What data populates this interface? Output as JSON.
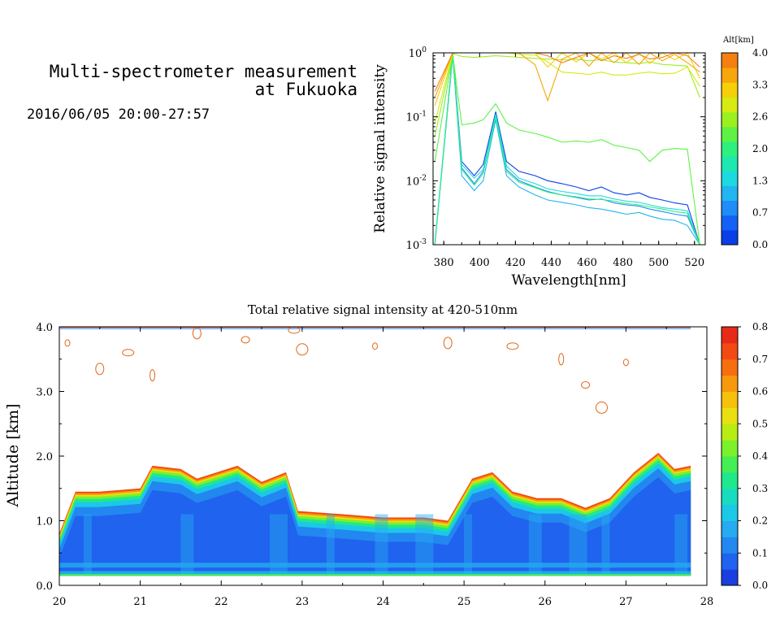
{
  "header": {
    "title_line1": "Multi-spectrometer measurement",
    "title_line2": "at Fukuoka",
    "timestamp": "2016/06/05 20:00-27:57"
  },
  "chart_data": [
    {
      "type": "line",
      "xlabel": "Wavelength[nm]",
      "ylabel": "Relative signal intensity",
      "yscale": "log",
      "xlim": [
        374,
        526
      ],
      "ylim": [
        0.001,
        1
      ],
      "x_ticks": [
        "380",
        "400",
        "420",
        "440",
        "460",
        "480",
        "500",
        "520"
      ],
      "y_ticks": [
        "10-3",
        "10-2",
        "10-1",
        "100"
      ],
      "x": [
        375,
        385,
        390,
        397,
        402,
        409,
        415,
        422,
        431,
        438,
        446,
        454,
        461,
        468,
        475,
        482,
        489,
        495,
        502,
        509,
        516,
        523
      ],
      "colorbar": {
        "label": "Alt[km]",
        "ticks": [
          "0.0",
          "0.7",
          "1.3",
          "2.0",
          "2.6",
          "3.3",
          "4.0"
        ],
        "colors": [
          "#0a3fe8",
          "#1462f5",
          "#1f8cf8",
          "#22b5f2",
          "#1fd9e0",
          "#1de8b0",
          "#2ef07e",
          "#5ef245",
          "#9cf020",
          "#d6ea14",
          "#f5cf0a",
          "#f7a60b",
          "#f57f10"
        ]
      },
      "series": [
        {
          "color": "#0a3fe8",
          "values": [
            0.001,
            1.0,
            0.02,
            0.012,
            0.018,
            0.12,
            0.02,
            0.014,
            0.012,
            0.01,
            0.009,
            0.008,
            0.007,
            0.008,
            0.0065,
            0.006,
            0.0065,
            0.0055,
            0.005,
            0.0045,
            0.0042,
            0.001
          ]
        },
        {
          "color": "#1f8cf8",
          "values": [
            0.001,
            0.95,
            0.016,
            0.009,
            0.014,
            0.1,
            0.015,
            0.01,
            0.008,
            0.0068,
            0.006,
            0.0055,
            0.005,
            0.0052,
            0.0045,
            0.0042,
            0.004,
            0.0036,
            0.0033,
            0.003,
            0.0028,
            0.001
          ]
        },
        {
          "color": "#22b5f2",
          "values": [
            0.001,
            0.9,
            0.012,
            0.007,
            0.01,
            0.09,
            0.012,
            0.008,
            0.006,
            0.005,
            0.0046,
            0.0042,
            0.0038,
            0.0036,
            0.0033,
            0.003,
            0.0032,
            0.0028,
            0.0025,
            0.0024,
            0.002,
            0.001
          ]
        },
        {
          "color": "#1fd9e0",
          "values": [
            0.001,
            0.92,
            0.018,
            0.011,
            0.015,
            0.11,
            0.017,
            0.011,
            0.009,
            0.0075,
            0.0068,
            0.0063,
            0.0058,
            0.0058,
            0.0052,
            0.0048,
            0.0046,
            0.0042,
            0.0038,
            0.0036,
            0.0034,
            0.001
          ]
        },
        {
          "color": "#2ef07e",
          "values": [
            0.001,
            0.97,
            0.015,
            0.0085,
            0.013,
            0.1,
            0.014,
            0.0095,
            0.0078,
            0.0066,
            0.006,
            0.0056,
            0.0052,
            0.0051,
            0.0048,
            0.0044,
            0.0042,
            0.0039,
            0.0036,
            0.0033,
            0.0031,
            0.001
          ]
        },
        {
          "color": "#5ef245",
          "values": [
            0.02,
            0.95,
            0.075,
            0.08,
            0.09,
            0.16,
            0.08,
            0.062,
            0.055,
            0.048,
            0.04,
            0.042,
            0.04,
            0.044,
            0.036,
            0.033,
            0.03,
            0.02,
            0.03,
            0.032,
            0.031,
            0.001
          ]
        },
        {
          "color": "#9cf020",
          "values": [
            0.05,
            0.98,
            0.88,
            0.85,
            0.87,
            0.9,
            0.88,
            0.85,
            0.82,
            0.8,
            0.78,
            0.8,
            0.75,
            0.78,
            0.72,
            0.7,
            0.68,
            0.72,
            0.66,
            0.64,
            0.62,
            0.2
          ]
        },
        {
          "color": "#d6ea14",
          "values": [
            0.08,
            1.0,
            1.0,
            1.0,
            1.0,
            1.0,
            1.0,
            0.95,
            0.92,
            0.72,
            0.5,
            0.48,
            0.46,
            0.5,
            0.45,
            0.45,
            0.48,
            0.5,
            0.47,
            0.48,
            0.6,
            0.3
          ]
        },
        {
          "color": "#f5cf0a",
          "values": [
            0.15,
            1.0,
            1.0,
            1.0,
            1.0,
            1.0,
            1.0,
            1.0,
            1.0,
            0.6,
            1.0,
            0.72,
            1.0,
            0.8,
            1.0,
            0.7,
            1.0,
            0.68,
            1.0,
            0.78,
            1.0,
            0.4
          ]
        },
        {
          "color": "#f7a60b",
          "values": [
            0.2,
            1.0,
            1.0,
            1.0,
            1.0,
            1.0,
            1.0,
            1.0,
            0.65,
            0.18,
            0.8,
            1.0,
            0.62,
            1.0,
            0.7,
            1.0,
            0.66,
            1.0,
            0.75,
            0.95,
            0.7,
            0.5
          ]
        },
        {
          "color": "#f57f10",
          "values": [
            0.25,
            1.0,
            1.0,
            1.0,
            1.0,
            1.0,
            1.0,
            1.0,
            1.0,
            0.9,
            0.7,
            0.85,
            1.0,
            0.75,
            0.9,
            0.82,
            0.95,
            0.8,
            0.85,
            1.0,
            0.9,
            0.6
          ]
        }
      ]
    },
    {
      "type": "heatmap",
      "title": "Total relative signal intensity at 420-510nm",
      "xlabel": "",
      "ylabel": "Altitude [km]",
      "xlim": [
        20,
        28
      ],
      "ylim": [
        0,
        4
      ],
      "data_x_range": [
        20,
        27.8
      ],
      "data_y_range": [
        0.15,
        4.0
      ],
      "x_ticks": [
        "20",
        "21",
        "22",
        "23",
        "24",
        "25",
        "26",
        "27",
        "28"
      ],
      "y_ticks": [
        "0.0",
        "1.0",
        "2.0",
        "3.0",
        "4.0"
      ],
      "colorbar": {
        "ticks": [
          "0.0",
          "0.1",
          "0.2",
          "0.3",
          "0.4",
          "0.5",
          "0.6",
          "0.7",
          "0.8"
        ],
        "colors": [
          "#1a3fe0",
          "#1f63ef",
          "#2387f0",
          "#26aaf0",
          "#1cc8e8",
          "#18dcc0",
          "#20e88c",
          "#44ee55",
          "#7cf02a",
          "#b8ec14",
          "#e8e010",
          "#f6c00c",
          "#f7990c",
          "#f66e10",
          "#f24a14",
          "#e82a18"
        ]
      },
      "layer_top_profile": {
        "t": [
          20.0,
          20.2,
          20.5,
          21.0,
          21.15,
          21.5,
          21.7,
          22.2,
          22.5,
          22.8,
          22.95,
          23.5,
          24.0,
          24.5,
          24.8,
          25.1,
          25.35,
          25.6,
          25.9,
          26.2,
          26.5,
          26.8,
          27.1,
          27.4,
          27.6,
          27.8
        ],
        "alt_km": [
          0.8,
          1.45,
          1.45,
          1.5,
          1.85,
          1.8,
          1.65,
          1.85,
          1.6,
          1.75,
          1.15,
          1.1,
          1.05,
          1.05,
          1.0,
          1.65,
          1.75,
          1.45,
          1.35,
          1.35,
          1.2,
          1.35,
          1.75,
          2.05,
          1.8,
          1.85
        ]
      }
    }
  ]
}
